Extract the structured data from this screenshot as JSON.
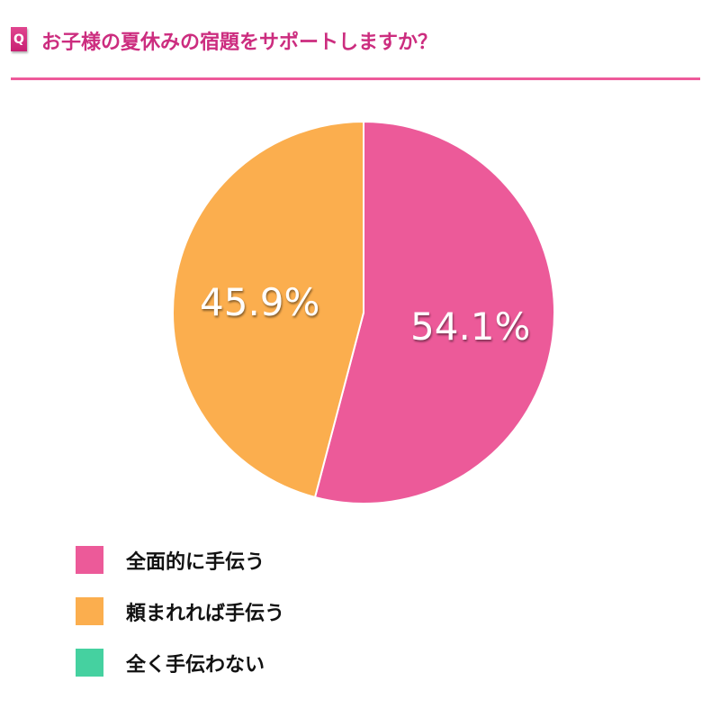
{
  "header": {
    "badge": "Q",
    "title": "お子様の夏休みの宿題をサポートしますか？",
    "title_color": "#cc2d7f",
    "rule_color": "#ee5a9a"
  },
  "chart_data": {
    "type": "pie",
    "title": "お子様の夏休みの宿題をサポートしますか？",
    "categories": [
      "全面的に手伝う",
      "頼まれれば手伝う",
      "全く手伝わない"
    ],
    "values": [
      54.1,
      45.9,
      0.0
    ],
    "labels": [
      "54.1%",
      "45.9%",
      ""
    ],
    "colors": [
      "#ec5a99",
      "#fbae4e",
      "#45d1a0"
    ],
    "start_angle": "12 o'clock, clockwise",
    "legend_position": "bottom-left"
  },
  "legend": {
    "items": [
      {
        "label": "全面的に手伝う",
        "color": "#ec5a99"
      },
      {
        "label": "頼まれれば手伝う",
        "color": "#fbae4e"
      },
      {
        "label": "全く手伝わない",
        "color": "#45d1a0"
      }
    ]
  }
}
